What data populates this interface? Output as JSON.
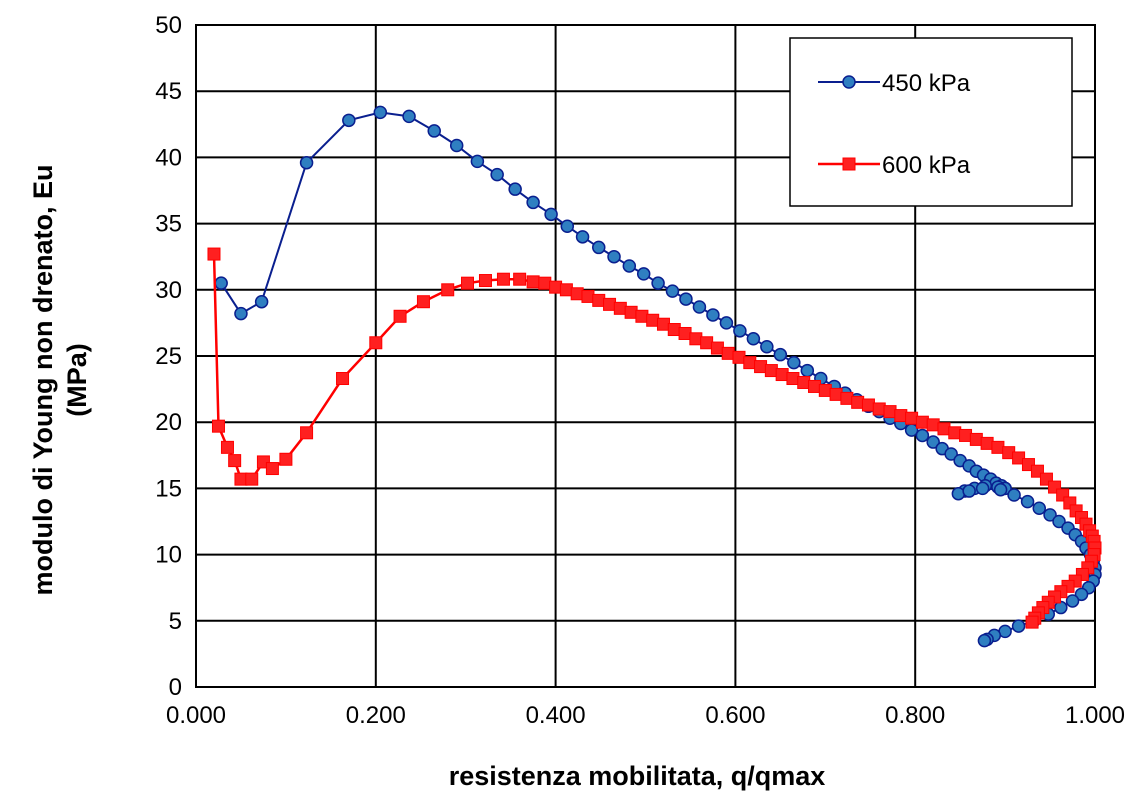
{
  "chart_data": {
    "type": "scatter",
    "title": "",
    "xlabel": "resistenza mobilitata, q/qmax",
    "ylabel_lines": [
      "modulo di Young non drenato, Eu",
      "(MPa)"
    ],
    "xlim": [
      0,
      1
    ],
    "ylim": [
      0,
      50
    ],
    "x_ticks": [
      0,
      0.2,
      0.4,
      0.6,
      0.8,
      1.0
    ],
    "x_tick_labels": [
      "0.000",
      "0.200",
      "0.400",
      "0.600",
      "0.800",
      "1.000"
    ],
    "y_ticks": [
      0,
      5,
      10,
      15,
      20,
      25,
      30,
      35,
      40,
      45,
      50
    ],
    "y_tick_labels": [
      "0",
      "5",
      "10",
      "15",
      "20",
      "25",
      "30",
      "35",
      "40",
      "45",
      "50"
    ],
    "grid": true,
    "legend": {
      "placement": "top-right"
    },
    "series": [
      {
        "name": "450 kPa",
        "color": "#0a1f8f",
        "marker": "circle",
        "marker_fill": "#2f7fc1",
        "x": [
          0.028,
          0.05,
          0.073,
          0.123,
          0.17,
          0.205,
          0.237,
          0.265,
          0.29,
          0.313,
          0.335,
          0.355,
          0.375,
          0.395,
          0.413,
          0.43,
          0.448,
          0.465,
          0.482,
          0.498,
          0.514,
          0.53,
          0.545,
          0.56,
          0.575,
          0.59,
          0.605,
          0.62,
          0.635,
          0.65,
          0.665,
          0.68,
          0.695,
          0.71,
          0.722,
          0.735,
          0.748,
          0.76,
          0.772,
          0.784,
          0.796,
          0.808,
          0.82,
          0.83,
          0.84,
          0.85,
          0.86,
          0.868,
          0.876,
          0.884,
          0.89,
          0.896,
          0.9,
          0.9,
          0.892,
          0.878,
          0.866,
          0.855,
          0.848,
          0.86,
          0.875,
          0.895,
          0.91,
          0.925,
          0.938,
          0.95,
          0.96,
          0.97,
          0.978,
          0.985,
          0.99,
          0.995,
          0.998,
          1.0,
          1.0,
          0.998,
          0.993,
          0.985,
          0.975,
          0.962,
          0.948,
          0.932,
          0.915,
          0.9,
          0.888,
          0.88,
          0.877
        ],
        "y": [
          30.5,
          28.2,
          29.1,
          39.6,
          42.8,
          43.4,
          43.1,
          42.0,
          40.9,
          39.7,
          38.7,
          37.6,
          36.6,
          35.7,
          34.8,
          34.0,
          33.2,
          32.5,
          31.8,
          31.2,
          30.5,
          29.9,
          29.3,
          28.7,
          28.1,
          27.5,
          26.9,
          26.3,
          25.7,
          25.1,
          24.5,
          23.9,
          23.3,
          22.7,
          22.2,
          21.7,
          21.2,
          20.8,
          20.3,
          19.9,
          19.4,
          19.0,
          18.5,
          18.0,
          17.6,
          17.1,
          16.7,
          16.3,
          16.0,
          15.7,
          15.4,
          15.2,
          15.0,
          15.0,
          15.1,
          15.2,
          15.0,
          14.8,
          14.6,
          14.8,
          15.0,
          14.9,
          14.5,
          14.0,
          13.5,
          13.0,
          12.5,
          12.0,
          11.5,
          11.0,
          10.5,
          10.0,
          9.5,
          9.0,
          8.5,
          8.0,
          7.5,
          7.0,
          6.5,
          6.0,
          5.5,
          5.0,
          4.6,
          4.2,
          3.9,
          3.6,
          3.5
        ]
      },
      {
        "name": "600 kPa",
        "color": "#ff0000",
        "marker": "square",
        "marker_fill": "#ff2020",
        "x": [
          0.02,
          0.025,
          0.035,
          0.043,
          0.05,
          0.062,
          0.075,
          0.085,
          0.1,
          0.123,
          0.163,
          0.2,
          0.227,
          0.253,
          0.28,
          0.302,
          0.322,
          0.342,
          0.36,
          0.375,
          0.388,
          0.4,
          0.412,
          0.424,
          0.436,
          0.448,
          0.46,
          0.472,
          0.484,
          0.496,
          0.508,
          0.52,
          0.532,
          0.544,
          0.556,
          0.568,
          0.58,
          0.592,
          0.604,
          0.616,
          0.628,
          0.64,
          0.652,
          0.664,
          0.676,
          0.688,
          0.7,
          0.712,
          0.724,
          0.736,
          0.748,
          0.76,
          0.772,
          0.784,
          0.796,
          0.808,
          0.82,
          0.832,
          0.844,
          0.856,
          0.868,
          0.88,
          0.892,
          0.904,
          0.915,
          0.926,
          0.936,
          0.946,
          0.955,
          0.964,
          0.972,
          0.979,
          0.985,
          0.99,
          0.994,
          0.997,
          0.999,
          1.0,
          0.999,
          0.996,
          0.992,
          0.986,
          0.978,
          0.97,
          0.962,
          0.955,
          0.948,
          0.942,
          0.937,
          0.933,
          0.93
        ],
        "y": [
          32.7,
          19.7,
          18.1,
          17.1,
          15.7,
          15.7,
          17.0,
          16.5,
          17.2,
          19.2,
          23.3,
          26.0,
          28.0,
          29.1,
          30.0,
          30.5,
          30.7,
          30.8,
          30.8,
          30.6,
          30.5,
          30.2,
          30.0,
          29.7,
          29.5,
          29.2,
          28.9,
          28.6,
          28.3,
          28.0,
          27.7,
          27.4,
          27.0,
          26.7,
          26.3,
          26.0,
          25.6,
          25.2,
          24.9,
          24.5,
          24.2,
          23.9,
          23.6,
          23.3,
          23.0,
          22.7,
          22.4,
          22.1,
          21.8,
          21.5,
          21.3,
          21.0,
          20.8,
          20.5,
          20.3,
          20.0,
          19.8,
          19.5,
          19.2,
          19.0,
          18.7,
          18.4,
          18.1,
          17.7,
          17.3,
          16.8,
          16.3,
          15.7,
          15.1,
          14.5,
          13.9,
          13.3,
          12.8,
          12.3,
          11.8,
          11.4,
          11.0,
          10.5,
          10.0,
          9.5,
          9.0,
          8.5,
          8.0,
          7.6,
          7.2,
          6.8,
          6.4,
          6.0,
          5.6,
          5.2,
          4.9
        ]
      }
    ]
  }
}
